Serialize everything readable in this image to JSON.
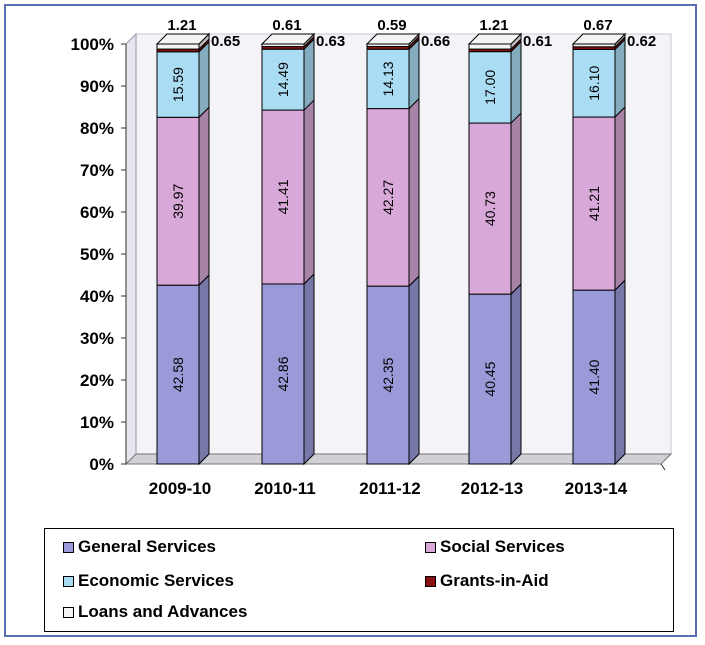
{
  "chart_data": {
    "type": "bar",
    "stacked": true,
    "percent_stacked": true,
    "categories": [
      "2009-10",
      "2010-11",
      "2011-12",
      "2012-13",
      "2013-14"
    ],
    "series": [
      {
        "name": "General Services",
        "color": "#9a9ad8",
        "values": [
          42.58,
          42.86,
          42.35,
          40.45,
          41.4
        ],
        "labels": [
          "42.58",
          "42.86",
          "42.35",
          "40.45",
          "41.40"
        ]
      },
      {
        "name": "Social Services",
        "color": "#d8a8d8",
        "values": [
          39.97,
          41.41,
          42.27,
          40.73,
          41.21
        ],
        "labels": [
          "39.97",
          "41.41",
          "42.27",
          "40.73",
          "41.21"
        ]
      },
      {
        "name": "Economic Services",
        "color": "#aadcf4",
        "values": [
          15.59,
          14.49,
          14.13,
          17.0,
          16.1
        ],
        "labels": [
          "15.59",
          "14.49",
          "14.13",
          "17.00",
          "16.10"
        ]
      },
      {
        "name": "Grants-in-Aid",
        "color": "#8b1010",
        "values": [
          0.65,
          0.63,
          0.66,
          0.61,
          0.62
        ],
        "labels": [
          "0.65",
          "0.63",
          "0.66",
          "0.61",
          "0.62"
        ]
      },
      {
        "name": "Loans and Advances",
        "color": "#f4f4f4",
        "values": [
          1.21,
          0.61,
          0.59,
          1.21,
          0.67
        ],
        "labels": [
          "1.21",
          "0.61",
          "0.59",
          "1.21",
          "0.67"
        ]
      }
    ],
    "y_ticks": [
      "0%",
      "10%",
      "20%",
      "30%",
      "40%",
      "50%",
      "60%",
      "70%",
      "80%",
      "90%",
      "100%"
    ],
    "ylim": [
      0,
      100
    ],
    "grid": false,
    "legend_position": "bottom"
  }
}
